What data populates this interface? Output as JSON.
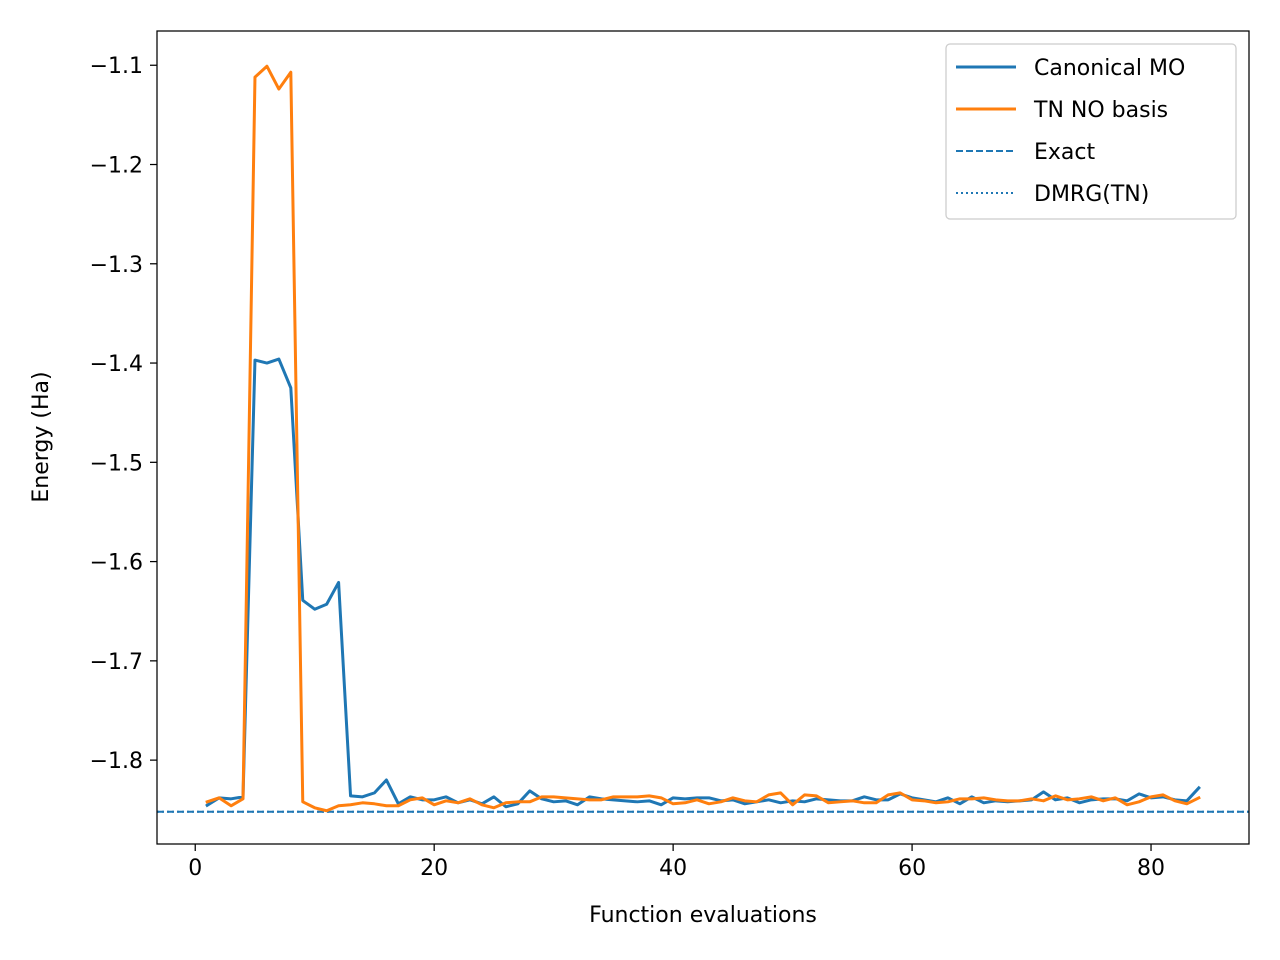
{
  "chart_data": {
    "type": "line",
    "title": "",
    "xlabel": "Function evaluations",
    "ylabel": "Energy (Ha)",
    "xlim": [
      -3.2,
      88.2
    ],
    "ylim": [
      -1.8845,
      -1.0655
    ],
    "grid": false,
    "legend_position": "top-right",
    "xticks": [
      {
        "value": 0,
        "label": "0"
      },
      {
        "value": 20,
        "label": "20"
      },
      {
        "value": 40,
        "label": "40"
      },
      {
        "value": 60,
        "label": "60"
      },
      {
        "value": 80,
        "label": "80"
      }
    ],
    "yticks": [
      {
        "value": -1.1,
        "label": "−1.1"
      },
      {
        "value": -1.2,
        "label": "−1.2"
      },
      {
        "value": -1.3,
        "label": "−1.3"
      },
      {
        "value": -1.4,
        "label": "−1.4"
      },
      {
        "value": -1.5,
        "label": "−1.5"
      },
      {
        "value": -1.6,
        "label": "−1.6"
      },
      {
        "value": -1.7,
        "label": "−1.7"
      },
      {
        "value": -1.8,
        "label": "−1.8"
      }
    ],
    "x": [
      1,
      2,
      3,
      4,
      5,
      6,
      7,
      8,
      9,
      10,
      11,
      12,
      13,
      14,
      15,
      16,
      17,
      18,
      19,
      20,
      21,
      22,
      23,
      24,
      25,
      26,
      27,
      28,
      29,
      30,
      31,
      32,
      33,
      34,
      35,
      36,
      37,
      38,
      39,
      40,
      41,
      42,
      43,
      44,
      45,
      46,
      47,
      48,
      49,
      50,
      51,
      52,
      53,
      54,
      55,
      56,
      57,
      58,
      59,
      60,
      61,
      62,
      63,
      64,
      65,
      66,
      67,
      68,
      69,
      70,
      71,
      72,
      73,
      74,
      75,
      76,
      77,
      78,
      79,
      80,
      81,
      82,
      83,
      84
    ],
    "series": [
      {
        "name": "Canonical MO",
        "color": "#1f77b4",
        "style": "solid",
        "values": [
          -1.8455,
          -1.838,
          -1.839,
          -1.837,
          -1.397,
          -1.4,
          -1.396,
          -1.425,
          -1.639,
          -1.648,
          -1.643,
          -1.621,
          -1.836,
          -1.837,
          -1.833,
          -1.82,
          -1.844,
          -1.837,
          -1.84,
          -1.84,
          -1.837,
          -1.843,
          -1.84,
          -1.844,
          -1.837,
          -1.847,
          -1.844,
          -1.831,
          -1.839,
          -1.842,
          -1.841,
          -1.845,
          -1.837,
          -1.839,
          -1.84,
          -1.841,
          -1.842,
          -1.841,
          -1.845,
          -1.838,
          -1.839,
          -1.838,
          -1.838,
          -1.841,
          -1.84,
          -1.844,
          -1.842,
          -1.84,
          -1.843,
          -1.841,
          -1.842,
          -1.839,
          -1.84,
          -1.841,
          -1.841,
          -1.837,
          -1.84,
          -1.84,
          -1.834,
          -1.838,
          -1.84,
          -1.842,
          -1.838,
          -1.844,
          -1.837,
          -1.843,
          -1.841,
          -1.842,
          -1.841,
          -1.84,
          -1.832,
          -1.84,
          -1.838,
          -1.843,
          -1.84,
          -1.839,
          -1.839,
          -1.841,
          -1.834,
          -1.838,
          -1.837,
          -1.84,
          -1.841,
          -1.828
        ]
      },
      {
        "name": "TN NO basis",
        "color": "#ff7f0e",
        "style": "solid",
        "values": [
          -1.842,
          -1.838,
          -1.846,
          -1.839,
          -1.112,
          -1.101,
          -1.124,
          -1.107,
          -1.842,
          -1.848,
          -1.851,
          -1.846,
          -1.845,
          -1.843,
          -1.844,
          -1.846,
          -1.846,
          -1.84,
          -1.838,
          -1.845,
          -1.841,
          -1.843,
          -1.839,
          -1.845,
          -1.848,
          -1.843,
          -1.842,
          -1.842,
          -1.837,
          -1.837,
          -1.838,
          -1.839,
          -1.84,
          -1.84,
          -1.837,
          -1.837,
          -1.837,
          -1.836,
          -1.838,
          -1.844,
          -1.843,
          -1.84,
          -1.844,
          -1.842,
          -1.838,
          -1.841,
          -1.842,
          -1.835,
          -1.833,
          -1.845,
          -1.835,
          -1.836,
          -1.843,
          -1.842,
          -1.841,
          -1.843,
          -1.843,
          -1.835,
          -1.833,
          -1.84,
          -1.841,
          -1.843,
          -1.842,
          -1.839,
          -1.839,
          -1.838,
          -1.84,
          -1.841,
          -1.841,
          -1.839,
          -1.841,
          -1.836,
          -1.84,
          -1.839,
          -1.837,
          -1.841,
          -1.838,
          -1.845,
          -1.842,
          -1.837,
          -1.835,
          -1.841,
          -1.844,
          -1.838
        ]
      }
    ],
    "reference_lines": [
      {
        "name": "Exact",
        "color": "#1f77b4",
        "style": "dashed",
        "y": -1.852
      },
      {
        "name": "DMRG(TN)",
        "color": "#1f77b4",
        "style": "dotted",
        "y": -1.852
      }
    ]
  }
}
